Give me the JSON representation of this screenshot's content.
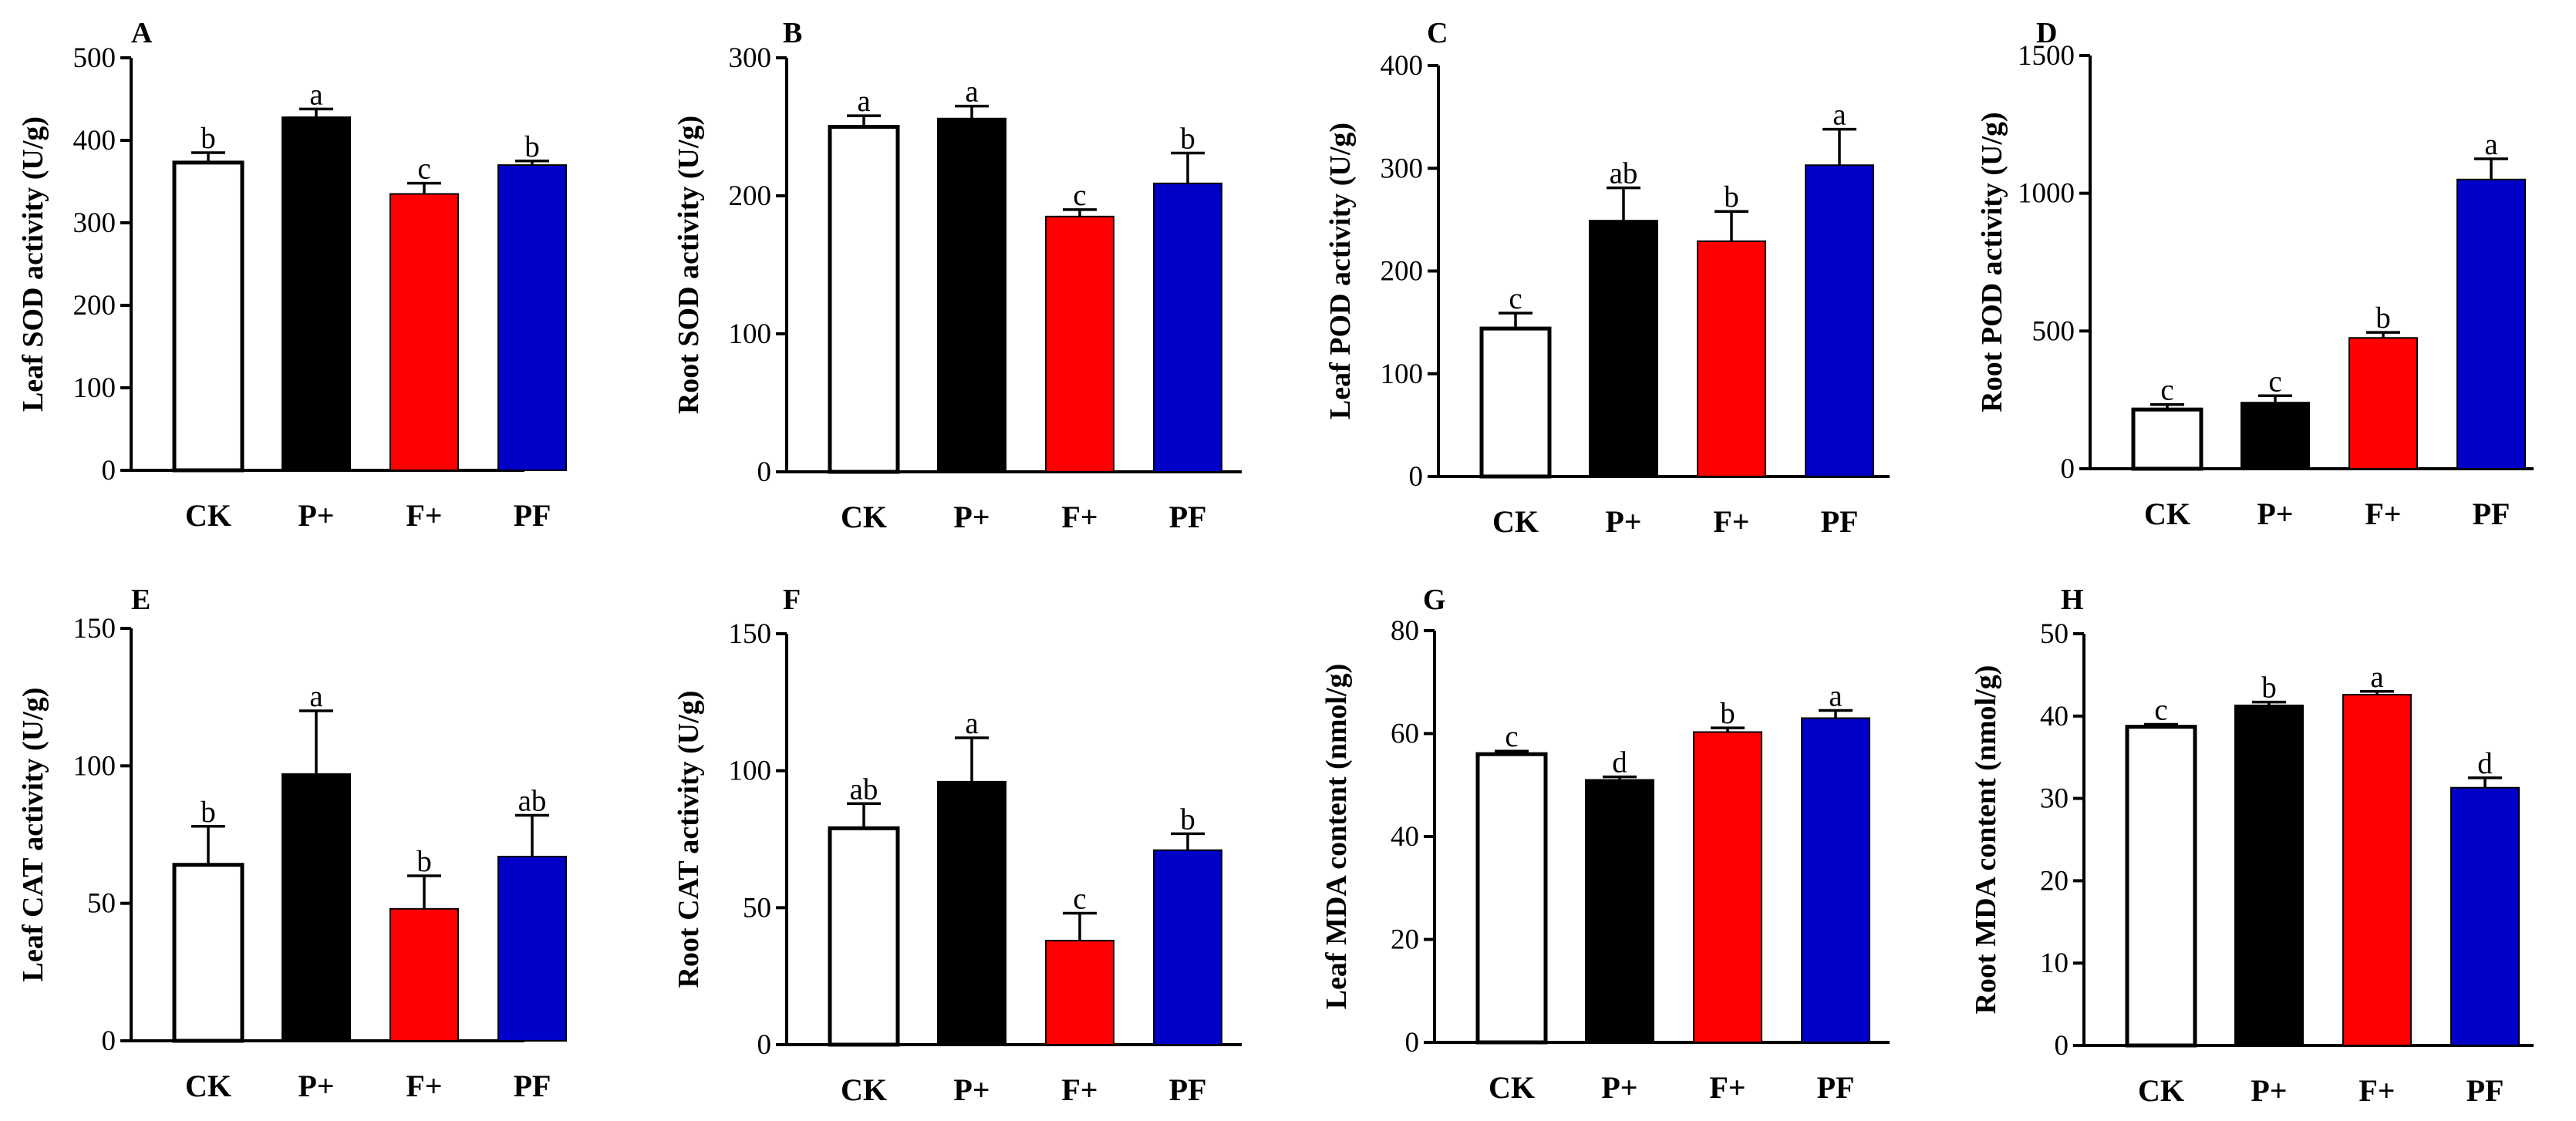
{
  "colors": {
    "CK": "#ffffff",
    "P+": "#000000",
    "F+": "#ff0000",
    "PF": "#0000c8",
    "outline": "#000000"
  },
  "chart_data": [
    {
      "panel": "A",
      "type": "bar",
      "ylabel": "Leaf SOD activity (U/g)",
      "ylim": [
        0,
        500
      ],
      "yticks": [
        "0",
        "100",
        "200",
        "300",
        "400",
        "500"
      ],
      "categories": [
        "CK",
        "P+",
        "F+",
        "PF"
      ],
      "values": [
        373,
        428,
        335,
        370
      ],
      "errors": [
        12,
        10,
        13,
        5
      ],
      "letters": [
        "b",
        "a",
        "c",
        "b"
      ]
    },
    {
      "panel": "B",
      "type": "bar",
      "ylabel": "Root  SOD activity (U/g)",
      "ylim": [
        0,
        300
      ],
      "yticks": [
        "0",
        "100",
        "200",
        "300"
      ],
      "categories": [
        "CK",
        "P+",
        "F+",
        "PF"
      ],
      "values": [
        250,
        256,
        185,
        209
      ],
      "errors": [
        8,
        9,
        5,
        22
      ],
      "letters": [
        "a",
        "a",
        "c",
        "b"
      ]
    },
    {
      "panel": "C",
      "type": "bar",
      "ylabel": "Leaf POD activity (U/g)",
      "ylim": [
        0,
        400
      ],
      "yticks": [
        "0",
        "100",
        "200",
        "300",
        "400"
      ],
      "categories": [
        "CK",
        "P+",
        "F+",
        "PF"
      ],
      "values": [
        144,
        249,
        229,
        303
      ],
      "errors": [
        15,
        32,
        29,
        35
      ],
      "letters": [
        "c",
        "ab",
        "b",
        "a"
      ]
    },
    {
      "panel": "D",
      "type": "bar",
      "ylabel": "Root  POD activity (U/g)",
      "ylim": [
        0,
        1500
      ],
      "yticks": [
        "0",
        "500",
        "1000",
        "1500"
      ],
      "categories": [
        "CK",
        "P+",
        "F+",
        "PF"
      ],
      "values": [
        215,
        240,
        475,
        1050
      ],
      "errors": [
        18,
        25,
        20,
        75
      ],
      "letters": [
        "c",
        "c",
        "b",
        "a"
      ]
    },
    {
      "panel": "E",
      "type": "bar",
      "ylabel": "Leaf CAT activity (U/g)",
      "ylim": [
        0,
        150
      ],
      "yticks": [
        "0",
        "50",
        "100",
        "150"
      ],
      "categories": [
        "CK",
        "P+",
        "F+",
        "PF"
      ],
      "values": [
        64,
        97,
        48,
        67
      ],
      "errors": [
        14,
        23,
        12,
        15
      ],
      "letters": [
        "b",
        "a",
        "b",
        "ab"
      ]
    },
    {
      "panel": "F",
      "type": "bar",
      "ylabel": "Root  CAT activity (U/g)",
      "ylim": [
        0,
        150
      ],
      "yticks": [
        "0",
        "50",
        "100",
        "150"
      ],
      "categories": [
        "CK",
        "P+",
        "F+",
        "PF"
      ],
      "values": [
        79,
        96,
        38,
        71
      ],
      "errors": [
        9,
        16,
        10,
        6
      ],
      "letters": [
        "ab",
        "a",
        "c",
        "b"
      ]
    },
    {
      "panel": "G",
      "type": "bar",
      "ylabel": "Leaf MDA content (nmol/g)",
      "ylim": [
        0,
        80
      ],
      "yticks": [
        "0",
        "20",
        "40",
        "60",
        "80"
      ],
      "categories": [
        "CK",
        "P+",
        "F+",
        "PF"
      ],
      "values": [
        56,
        51,
        60.3,
        63
      ],
      "errors": [
        0.6,
        0.6,
        0.8,
        1.5
      ],
      "letters": [
        "c",
        "d",
        "b",
        "a"
      ]
    },
    {
      "panel": "H",
      "type": "bar",
      "ylabel": "Root MDA content (nmol/g)",
      "ylim": [
        0,
        50
      ],
      "yticks": [
        "0",
        "10",
        "20",
        "30",
        "40",
        "50"
      ],
      "categories": [
        "CK",
        "P+",
        "F+",
        "PF"
      ],
      "values": [
        38.7,
        41.3,
        42.6,
        31.3
      ],
      "errors": [
        0.3,
        0.4,
        0.4,
        1.2
      ],
      "letters": [
        "c",
        "b",
        "a",
        "d"
      ]
    }
  ]
}
